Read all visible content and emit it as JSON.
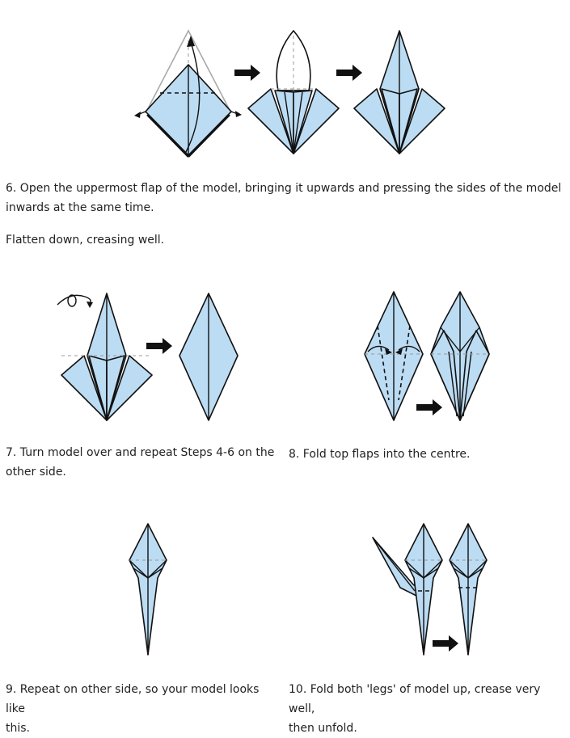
{
  "steps": [
    {
      "id": 6,
      "lines": [
        "6. Open the uppermost flap of the model, bringing it upwards and pressing the sides of the model",
        "inwards at the same time."
      ]
    },
    {
      "id": 6.1,
      "lines": [
        "Flatten down, creasing well."
      ]
    },
    {
      "id": 7,
      "lines": [
        "7. Turn model over and repeat Steps 4-6 on the",
        "other side."
      ]
    },
    {
      "id": 8,
      "lines": [
        "8. Fold top flaps into the centre."
      ]
    },
    {
      "id": 9,
      "lines": [
        "9. Repeat on other side, so your model looks like",
        "this."
      ]
    },
    {
      "id": 10,
      "lines": [
        "10. Fold both 'legs' of model up, crease very well,",
        "then unfold."
      ]
    }
  ],
  "colors": {
    "paper": "#bcdcf3",
    "line": "#111111",
    "text": "#222222"
  }
}
